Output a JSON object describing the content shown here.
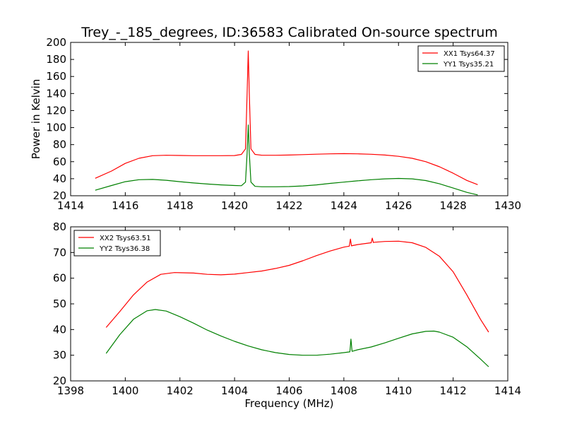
{
  "figure_title": "Trey_-_185_degrees, ID:36583 Calibrated On-source spectrum",
  "chart_data": [
    {
      "type": "line",
      "title": "",
      "xlabel": "",
      "ylabel": "Power in Kelvin",
      "xlim": [
        1414,
        1430
      ],
      "ylim": [
        20,
        200
      ],
      "x_ticks": [
        "1414",
        "1416",
        "1418",
        "1420",
        "1422",
        "1424",
        "1426",
        "1428",
        "1430"
      ],
      "y_ticks": [
        "20",
        "40",
        "60",
        "80",
        "100",
        "120",
        "140",
        "160",
        "180",
        "200"
      ],
      "legend_position": "top-right",
      "series": [
        {
          "name": "XX1 Tsys64.37",
          "color": "#ff0000",
          "x": [
            1414.9,
            1415.5,
            1416.0,
            1416.5,
            1417.0,
            1417.5,
            1418.0,
            1418.5,
            1419.0,
            1419.5,
            1420.0,
            1420.25,
            1420.4,
            1420.46,
            1420.5,
            1420.54,
            1420.6,
            1420.75,
            1421.0,
            1421.5,
            1422.0,
            1422.5,
            1423.0,
            1423.5,
            1424.0,
            1424.5,
            1425.0,
            1425.5,
            1426.0,
            1426.5,
            1427.0,
            1427.5,
            1428.0,
            1428.5,
            1428.9
          ],
          "values": [
            40.5,
            49,
            58,
            64,
            67,
            67.5,
            67.3,
            67,
            67,
            67,
            67.2,
            68.5,
            75,
            140,
            190,
            140,
            75,
            68.5,
            67.5,
            67.5,
            67.8,
            68.3,
            68.8,
            69.2,
            69.4,
            69.2,
            68.7,
            67.8,
            66.3,
            64,
            60,
            54,
            46.5,
            38,
            33
          ]
        },
        {
          "name": "YY1 Tsys35.21",
          "color": "#008000",
          "x": [
            1414.9,
            1415.5,
            1416.0,
            1416.5,
            1417.0,
            1417.5,
            1418.0,
            1418.5,
            1419.0,
            1419.5,
            1420.0,
            1420.25,
            1420.4,
            1420.46,
            1420.5,
            1420.54,
            1420.6,
            1420.75,
            1421.0,
            1421.5,
            1422.0,
            1422.5,
            1423.0,
            1423.5,
            1424.0,
            1424.5,
            1425.0,
            1425.5,
            1426.0,
            1426.5,
            1427.0,
            1427.5,
            1428.0,
            1428.5,
            1428.9
          ],
          "values": [
            26.5,
            32,
            36.5,
            38.8,
            39.2,
            38.2,
            36.5,
            35,
            33.8,
            32.8,
            32,
            31.8,
            36,
            70,
            103,
            70,
            36,
            31,
            30.5,
            30.5,
            30.8,
            31.5,
            32.8,
            34.5,
            36,
            37.5,
            38.8,
            39.8,
            40.3,
            39.8,
            37.8,
            34,
            29,
            24,
            21
          ]
        }
      ]
    },
    {
      "type": "line",
      "title": "",
      "xlabel": "Frequency (MHz)",
      "ylabel": "",
      "xlim": [
        1398,
        1414
      ],
      "ylim": [
        20,
        80
      ],
      "x_ticks": [
        "1398",
        "1400",
        "1402",
        "1404",
        "1406",
        "1408",
        "1410",
        "1412",
        "1414"
      ],
      "y_ticks": [
        "20",
        "30",
        "40",
        "50",
        "60",
        "70",
        "80"
      ],
      "legend_position": "top-left",
      "series": [
        {
          "name": "XX2 Tsys63.51",
          "color": "#ff0000",
          "x": [
            1399.3,
            1399.8,
            1400.3,
            1400.8,
            1401.3,
            1401.8,
            1402.5,
            1403.0,
            1403.5,
            1404.0,
            1404.5,
            1405.0,
            1405.5,
            1406.0,
            1406.5,
            1407.0,
            1407.5,
            1408.0,
            1408.2,
            1408.24,
            1408.28,
            1408.32,
            1408.5,
            1409.0,
            1409.04,
            1409.08,
            1409.12,
            1409.5,
            1410.0,
            1410.5,
            1411.0,
            1411.5,
            1412.0,
            1412.5,
            1413.0,
            1413.3
          ],
          "values": [
            40.8,
            47,
            53.5,
            58.5,
            61.5,
            62.2,
            62,
            61.5,
            61.3,
            61.6,
            62.2,
            62.8,
            63.8,
            65,
            66.8,
            68.8,
            70.6,
            72.1,
            72.5,
            75.2,
            72.6,
            72.7,
            73.1,
            73.8,
            75.6,
            73.9,
            74,
            74.3,
            74.4,
            73.8,
            72,
            68.5,
            62.5,
            53.5,
            44,
            39
          ]
        },
        {
          "name": "YY2 Tsys36.38",
          "color": "#008000",
          "x": [
            1399.3,
            1399.8,
            1400.3,
            1400.8,
            1401.1,
            1401.5,
            1402.0,
            1402.5,
            1403.0,
            1403.5,
            1404.0,
            1404.5,
            1405.0,
            1405.5,
            1406.0,
            1406.5,
            1407.0,
            1407.5,
            1408.0,
            1408.22,
            1408.26,
            1408.3,
            1408.5,
            1409.0,
            1409.5,
            1410.0,
            1410.5,
            1411.0,
            1411.3,
            1411.5,
            1412.0,
            1412.5,
            1413.0,
            1413.3
          ],
          "values": [
            30.7,
            38,
            44,
            47.3,
            47.8,
            47.2,
            45,
            42.5,
            39.8,
            37.5,
            35.4,
            33.6,
            32.1,
            31,
            30.3,
            30,
            30,
            30.4,
            31,
            31.3,
            36.3,
            31.5,
            32.1,
            33.2,
            34.8,
            36.6,
            38.3,
            39.3,
            39.4,
            39,
            37,
            33.3,
            28.5,
            25.5
          ]
        }
      ]
    }
  ]
}
